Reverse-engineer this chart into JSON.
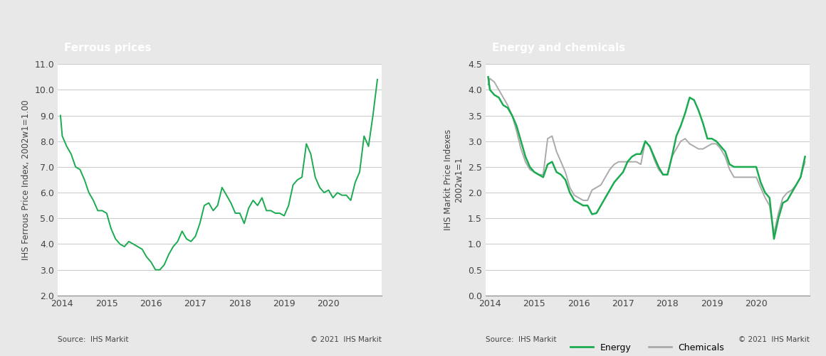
{
  "title_left": "Ferrous prices",
  "title_right": "Energy and chemicals",
  "ylabel_left": "IHS Ferrous Price Index, 2002w1=1.00",
  "ylabel_right": "IHS Markit Price Indexes\n2002w1=1",
  "source_text": "Source:  IHS Markit",
  "copyright_text": "© 2021  IHS Markit",
  "title_bg_color": "#7f7f7f",
  "title_text_color": "#ffffff",
  "green_color": "#1aab50",
  "gray_color": "#aaaaaa",
  "plot_bg_color": "#ffffff",
  "outer_bg_color": "#e8e8e8",
  "grid_color": "#cccccc",
  "left_ylim": [
    2.0,
    11.0
  ],
  "left_yticks": [
    2.0,
    3.0,
    4.0,
    5.0,
    6.0,
    7.0,
    8.0,
    9.0,
    10.0,
    11.0
  ],
  "right_ylim": [
    0.0,
    4.5
  ],
  "right_yticks": [
    0.0,
    0.5,
    1.0,
    1.5,
    2.0,
    2.5,
    3.0,
    3.5,
    4.0,
    4.5
  ],
  "ferrous_x": [
    2013.96,
    2014.0,
    2014.1,
    2014.2,
    2014.3,
    2014.4,
    2014.5,
    2014.6,
    2014.7,
    2014.8,
    2014.9,
    2015.0,
    2015.1,
    2015.2,
    2015.3,
    2015.4,
    2015.5,
    2015.6,
    2015.7,
    2015.8,
    2015.9,
    2016.0,
    2016.1,
    2016.2,
    2016.3,
    2016.4,
    2016.5,
    2016.6,
    2016.7,
    2016.8,
    2016.9,
    2017.0,
    2017.1,
    2017.2,
    2017.3,
    2017.4,
    2017.5,
    2017.6,
    2017.7,
    2017.8,
    2017.9,
    2018.0,
    2018.1,
    2018.2,
    2018.3,
    2018.4,
    2018.5,
    2018.6,
    2018.7,
    2018.8,
    2018.9,
    2019.0,
    2019.1,
    2019.2,
    2019.3,
    2019.4,
    2019.5,
    2019.6,
    2019.7,
    2019.8,
    2019.9,
    2020.0,
    2020.1,
    2020.2,
    2020.3,
    2020.4,
    2020.5,
    2020.6,
    2020.7,
    2020.8,
    2020.9,
    2021.0,
    2021.1
  ],
  "ferrous_y": [
    9.0,
    8.2,
    7.8,
    7.5,
    7.0,
    6.9,
    6.5,
    6.0,
    5.7,
    5.3,
    5.3,
    5.2,
    4.6,
    4.2,
    4.0,
    3.9,
    4.1,
    4.0,
    3.9,
    3.8,
    3.5,
    3.3,
    3.0,
    3.0,
    3.2,
    3.6,
    3.9,
    4.1,
    4.5,
    4.2,
    4.1,
    4.3,
    4.8,
    5.5,
    5.6,
    5.3,
    5.5,
    6.2,
    5.9,
    5.6,
    5.2,
    5.2,
    4.8,
    5.4,
    5.7,
    5.5,
    5.8,
    5.3,
    5.3,
    5.2,
    5.2,
    5.1,
    5.5,
    6.3,
    6.5,
    6.6,
    7.9,
    7.5,
    6.6,
    6.2,
    6.0,
    6.1,
    5.8,
    6.0,
    5.9,
    5.9,
    5.7,
    6.4,
    6.8,
    8.2,
    7.8,
    9.0,
    10.4
  ],
  "energy_x": [
    2013.96,
    2014.0,
    2014.1,
    2014.2,
    2014.3,
    2014.4,
    2014.5,
    2014.6,
    2014.7,
    2014.8,
    2014.9,
    2015.0,
    2015.1,
    2015.2,
    2015.3,
    2015.4,
    2015.5,
    2015.6,
    2015.7,
    2015.8,
    2015.9,
    2016.0,
    2016.1,
    2016.2,
    2016.3,
    2016.4,
    2016.5,
    2016.6,
    2016.7,
    2016.8,
    2016.9,
    2017.0,
    2017.1,
    2017.2,
    2017.3,
    2017.4,
    2017.5,
    2017.6,
    2017.7,
    2017.8,
    2017.9,
    2018.0,
    2018.1,
    2018.2,
    2018.3,
    2018.4,
    2018.5,
    2018.6,
    2018.7,
    2018.8,
    2018.9,
    2019.0,
    2019.1,
    2019.2,
    2019.3,
    2019.4,
    2019.5,
    2019.6,
    2019.7,
    2019.8,
    2019.9,
    2020.0,
    2020.1,
    2020.2,
    2020.3,
    2020.4,
    2020.5,
    2020.6,
    2020.7,
    2020.8,
    2020.9,
    2021.0,
    2021.1
  ],
  "energy_y": [
    4.25,
    4.0,
    3.9,
    3.85,
    3.7,
    3.65,
    3.5,
    3.3,
    3.0,
    2.7,
    2.5,
    2.4,
    2.35,
    2.3,
    2.55,
    2.6,
    2.4,
    2.35,
    2.25,
    2.0,
    1.85,
    1.8,
    1.75,
    1.75,
    1.58,
    1.6,
    1.75,
    1.9,
    2.05,
    2.2,
    2.3,
    2.4,
    2.6,
    2.7,
    2.75,
    2.75,
    3.0,
    2.9,
    2.7,
    2.5,
    2.35,
    2.35,
    2.7,
    3.1,
    3.3,
    3.55,
    3.85,
    3.8,
    3.6,
    3.35,
    3.05,
    3.05,
    3.0,
    2.9,
    2.8,
    2.55,
    2.5,
    2.5,
    2.5,
    2.5,
    2.5,
    2.5,
    2.2,
    2.0,
    1.9,
    1.1,
    1.5,
    1.8,
    1.85,
    2.0,
    2.15,
    2.3,
    2.7
  ],
  "chemicals_x": [
    2013.96,
    2014.0,
    2014.1,
    2014.2,
    2014.3,
    2014.4,
    2014.5,
    2014.6,
    2014.7,
    2014.8,
    2014.9,
    2015.0,
    2015.1,
    2015.2,
    2015.3,
    2015.4,
    2015.5,
    2015.6,
    2015.7,
    2015.8,
    2015.9,
    2016.0,
    2016.1,
    2016.2,
    2016.3,
    2016.4,
    2016.5,
    2016.6,
    2016.7,
    2016.8,
    2016.9,
    2017.0,
    2017.1,
    2017.2,
    2017.3,
    2017.4,
    2017.5,
    2017.6,
    2017.7,
    2017.8,
    2017.9,
    2018.0,
    2018.1,
    2018.2,
    2018.3,
    2018.4,
    2018.5,
    2018.6,
    2018.7,
    2018.8,
    2018.9,
    2019.0,
    2019.1,
    2019.2,
    2019.3,
    2019.4,
    2019.5,
    2019.6,
    2019.7,
    2019.8,
    2019.9,
    2020.0,
    2020.1,
    2020.2,
    2020.3,
    2020.4,
    2020.5,
    2020.6,
    2020.7,
    2020.8,
    2020.9,
    2021.0,
    2021.1
  ],
  "chemicals_y": [
    4.1,
    4.22,
    4.15,
    4.0,
    3.85,
    3.7,
    3.5,
    3.2,
    2.85,
    2.6,
    2.45,
    2.4,
    2.35,
    2.35,
    3.05,
    3.1,
    2.8,
    2.6,
    2.4,
    2.1,
    1.95,
    1.9,
    1.85,
    1.85,
    2.05,
    2.1,
    2.15,
    2.3,
    2.45,
    2.55,
    2.6,
    2.6,
    2.6,
    2.6,
    2.6,
    2.55,
    3.0,
    2.9,
    2.65,
    2.45,
    2.35,
    2.35,
    2.7,
    2.85,
    3.0,
    3.05,
    2.95,
    2.9,
    2.85,
    2.85,
    2.9,
    2.95,
    2.95,
    2.85,
    2.7,
    2.45,
    2.3,
    2.3,
    2.3,
    2.3,
    2.3,
    2.3,
    2.1,
    1.9,
    1.75,
    1.2,
    1.6,
    1.9,
    2.0,
    2.05,
    2.15,
    2.3,
    2.6
  ],
  "xticks_left": [
    2014,
    2015,
    2016,
    2017,
    2018,
    2019,
    2020
  ],
  "xticks_right": [
    2014,
    2015,
    2016,
    2017,
    2018,
    2019,
    2020
  ]
}
